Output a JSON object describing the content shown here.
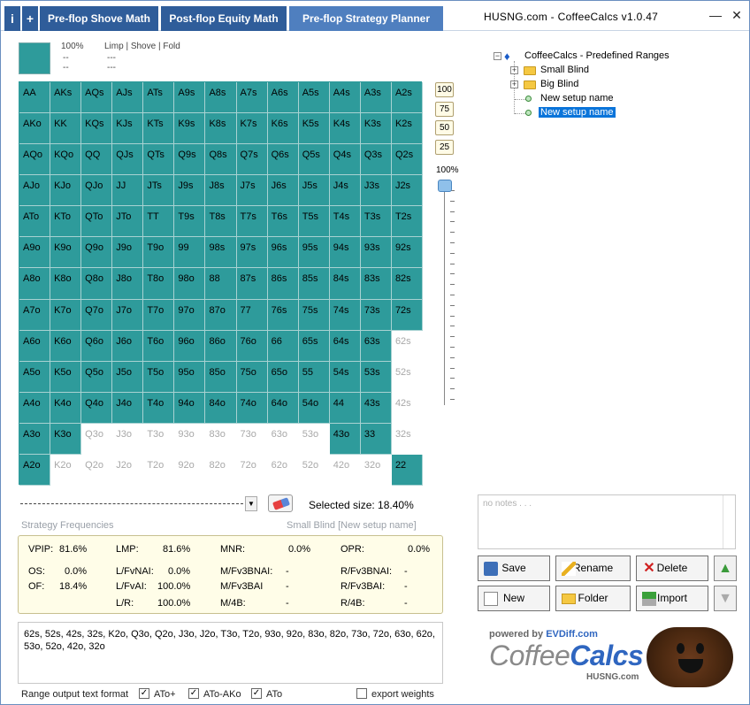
{
  "titlebar": {
    "info_label": "i",
    "plus_label": "+",
    "tabs": [
      {
        "label": "Pre-flop Shove Math"
      },
      {
        "label": "Post-flop Equity Math"
      },
      {
        "label": "Pre-flop Strategy Planner"
      }
    ],
    "app_title": "HUSNG.com  -  CoffeeCalcs  v1.0.47",
    "minimize": "—",
    "close": "✕"
  },
  "header": {
    "pct": "100%",
    "pct_sub": "--",
    "labels": "Limp | Shove | Fold",
    "labels_sub1": "---",
    "labels_sub2": "---"
  },
  "grid_rows": [
    [
      [
        "AA",
        1
      ],
      [
        "AKs",
        1
      ],
      [
        "AQs",
        1
      ],
      [
        "AJs",
        1
      ],
      [
        "ATs",
        1
      ],
      [
        "A9s",
        1
      ],
      [
        "A8s",
        1
      ],
      [
        "A7s",
        1
      ],
      [
        "A6s",
        1
      ],
      [
        "A5s",
        1
      ],
      [
        "A4s",
        1
      ],
      [
        "A3s",
        1
      ],
      [
        "A2s",
        1
      ]
    ],
    [
      [
        "AKo",
        1
      ],
      [
        "KK",
        1
      ],
      [
        "KQs",
        1
      ],
      [
        "KJs",
        1
      ],
      [
        "KTs",
        1
      ],
      [
        "K9s",
        1
      ],
      [
        "K8s",
        1
      ],
      [
        "K7s",
        1
      ],
      [
        "K6s",
        1
      ],
      [
        "K5s",
        1
      ],
      [
        "K4s",
        1
      ],
      [
        "K3s",
        1
      ],
      [
        "K2s",
        1
      ]
    ],
    [
      [
        "AQo",
        1
      ],
      [
        "KQo",
        1
      ],
      [
        "QQ",
        1
      ],
      [
        "QJs",
        1
      ],
      [
        "QTs",
        1
      ],
      [
        "Q9s",
        1
      ],
      [
        "Q8s",
        1
      ],
      [
        "Q7s",
        1
      ],
      [
        "Q6s",
        1
      ],
      [
        "Q5s",
        1
      ],
      [
        "Q4s",
        1
      ],
      [
        "Q3s",
        1
      ],
      [
        "Q2s",
        1
      ]
    ],
    [
      [
        "AJo",
        1
      ],
      [
        "KJo",
        1
      ],
      [
        "QJo",
        1
      ],
      [
        "JJ",
        1
      ],
      [
        "JTs",
        1
      ],
      [
        "J9s",
        1
      ],
      [
        "J8s",
        1
      ],
      [
        "J7s",
        1
      ],
      [
        "J6s",
        1
      ],
      [
        "J5s",
        1
      ],
      [
        "J4s",
        1
      ],
      [
        "J3s",
        1
      ],
      [
        "J2s",
        1
      ]
    ],
    [
      [
        "ATo",
        1
      ],
      [
        "KTo",
        1
      ],
      [
        "QTo",
        1
      ],
      [
        "JTo",
        1
      ],
      [
        "TT",
        1
      ],
      [
        "T9s",
        1
      ],
      [
        "T8s",
        1
      ],
      [
        "T7s",
        1
      ],
      [
        "T6s",
        1
      ],
      [
        "T5s",
        1
      ],
      [
        "T4s",
        1
      ],
      [
        "T3s",
        1
      ],
      [
        "T2s",
        1
      ]
    ],
    [
      [
        "A9o",
        1
      ],
      [
        "K9o",
        1
      ],
      [
        "Q9o",
        1
      ],
      [
        "J9o",
        1
      ],
      [
        "T9o",
        1
      ],
      [
        "99",
        1
      ],
      [
        "98s",
        1
      ],
      [
        "97s",
        1
      ],
      [
        "96s",
        1
      ],
      [
        "95s",
        1
      ],
      [
        "94s",
        1
      ],
      [
        "93s",
        1
      ],
      [
        "92s",
        1
      ]
    ],
    [
      [
        "A8o",
        1
      ],
      [
        "K8o",
        1
      ],
      [
        "Q8o",
        1
      ],
      [
        "J8o",
        1
      ],
      [
        "T8o",
        1
      ],
      [
        "98o",
        1
      ],
      [
        "88",
        1
      ],
      [
        "87s",
        1
      ],
      [
        "86s",
        1
      ],
      [
        "85s",
        1
      ],
      [
        "84s",
        1
      ],
      [
        "83s",
        1
      ],
      [
        "82s",
        1
      ]
    ],
    [
      [
        "A7o",
        1
      ],
      [
        "K7o",
        1
      ],
      [
        "Q7o",
        1
      ],
      [
        "J7o",
        1
      ],
      [
        "T7o",
        1
      ],
      [
        "97o",
        1
      ],
      [
        "87o",
        1
      ],
      [
        "77",
        1
      ],
      [
        "76s",
        1
      ],
      [
        "75s",
        1
      ],
      [
        "74s",
        1
      ],
      [
        "73s",
        1
      ],
      [
        "72s",
        1
      ]
    ],
    [
      [
        "A6o",
        1
      ],
      [
        "K6o",
        1
      ],
      [
        "Q6o",
        1
      ],
      [
        "J6o",
        1
      ],
      [
        "T6o",
        1
      ],
      [
        "96o",
        1
      ],
      [
        "86o",
        1
      ],
      [
        "76o",
        1
      ],
      [
        "66",
        1
      ],
      [
        "65s",
        1
      ],
      [
        "64s",
        1
      ],
      [
        "63s",
        1
      ],
      [
        "62s",
        0
      ]
    ],
    [
      [
        "A5o",
        1
      ],
      [
        "K5o",
        1
      ],
      [
        "Q5o",
        1
      ],
      [
        "J5o",
        1
      ],
      [
        "T5o",
        1
      ],
      [
        "95o",
        1
      ],
      [
        "85o",
        1
      ],
      [
        "75o",
        1
      ],
      [
        "65o",
        1
      ],
      [
        "55",
        1
      ],
      [
        "54s",
        1
      ],
      [
        "53s",
        1
      ],
      [
        "52s",
        0
      ]
    ],
    [
      [
        "A4o",
        1
      ],
      [
        "K4o",
        1
      ],
      [
        "Q4o",
        1
      ],
      [
        "J4o",
        1
      ],
      [
        "T4o",
        1
      ],
      [
        "94o",
        1
      ],
      [
        "84o",
        1
      ],
      [
        "74o",
        1
      ],
      [
        "64o",
        1
      ],
      [
        "54o",
        1
      ],
      [
        "44",
        1
      ],
      [
        "43s",
        1
      ],
      [
        "42s",
        0
      ]
    ],
    [
      [
        "A3o",
        1
      ],
      [
        "K3o",
        1
      ],
      [
        "Q3o",
        0
      ],
      [
        "J3o",
        0
      ],
      [
        "T3o",
        0
      ],
      [
        "93o",
        0
      ],
      [
        "83o",
        0
      ],
      [
        "73o",
        0
      ],
      [
        "63o",
        0
      ],
      [
        "53o",
        0
      ],
      [
        "43o",
        1
      ],
      [
        "33",
        1
      ],
      [
        "32s",
        0
      ]
    ],
    [
      [
        "A2o",
        1
      ],
      [
        "K2o",
        0
      ],
      [
        "Q2o",
        0
      ],
      [
        "J2o",
        0
      ],
      [
        "T2o",
        0
      ],
      [
        "92o",
        0
      ],
      [
        "82o",
        0
      ],
      [
        "72o",
        0
      ],
      [
        "62o",
        0
      ],
      [
        "52o",
        0
      ],
      [
        "42o",
        0
      ],
      [
        "32o",
        0
      ],
      [
        "22",
        1
      ]
    ]
  ],
  "slider": {
    "buttons": [
      "100",
      "75",
      "50",
      "25"
    ],
    "value_label": "100%",
    "value": 100
  },
  "selected_size": "Selected size: 18.40%",
  "strategy": {
    "title": "Strategy Frequencies",
    "context": "Small Blind [New setup name]",
    "rows": [
      [
        "VPIP:",
        "81.6%",
        "LMP:",
        "81.6%",
        "MNR:",
        "0.0%",
        "OPR:",
        "0.0%"
      ],
      [
        "OS:",
        "0.0%",
        "L/FvNAI:",
        "0.0%",
        "M/Fv3BNAI:",
        "-",
        "R/Fv3BNAI:",
        "-"
      ],
      [
        "OF:",
        "18.4%",
        "L/FvAI:",
        "100.0%",
        "M/Fv3BAI",
        "-",
        "R/Fv3BAI:",
        "-"
      ],
      [
        "",
        "",
        "L/R:",
        "100.0%",
        "M/4B:",
        "-",
        "R/4B:",
        "-"
      ]
    ]
  },
  "range_text": "62s, 52s, 42s, 32s, K2o, Q3o, Q2o, J3o, J2o, T3o, T2o, 93o, 92o, 83o, 82o, 73o, 72o, 63o, 62o, 53o, 52o, 42o, 32o",
  "format": {
    "label": "Range output text format",
    "opt1": "ATo+",
    "opt2": "ATo-AKo",
    "opt3": "ATo",
    "opt4": "export weights"
  },
  "tree": {
    "root": "CoffeeCalcs - Predefined Ranges",
    "folder1": "Small Blind",
    "folder2": "Big Blind",
    "leaf1": "New setup name",
    "leaf2": "New setup name"
  },
  "notes_placeholder": "no notes . . .",
  "actions": {
    "save": "Save",
    "rename": "Rename",
    "delete": "Delete",
    "new": "New",
    "folder": "Folder",
    "import": "Import"
  },
  "logo": {
    "powered": "powered by",
    "evd": "EVDiff.com",
    "coffee": "Coffee",
    "calcs": "Calcs",
    "husng": "HUSNG.com"
  },
  "colors": {
    "range_on": "#2e9b9b",
    "tab_bg": "#2f5d9a",
    "tab_active": "#4f7fbf"
  }
}
